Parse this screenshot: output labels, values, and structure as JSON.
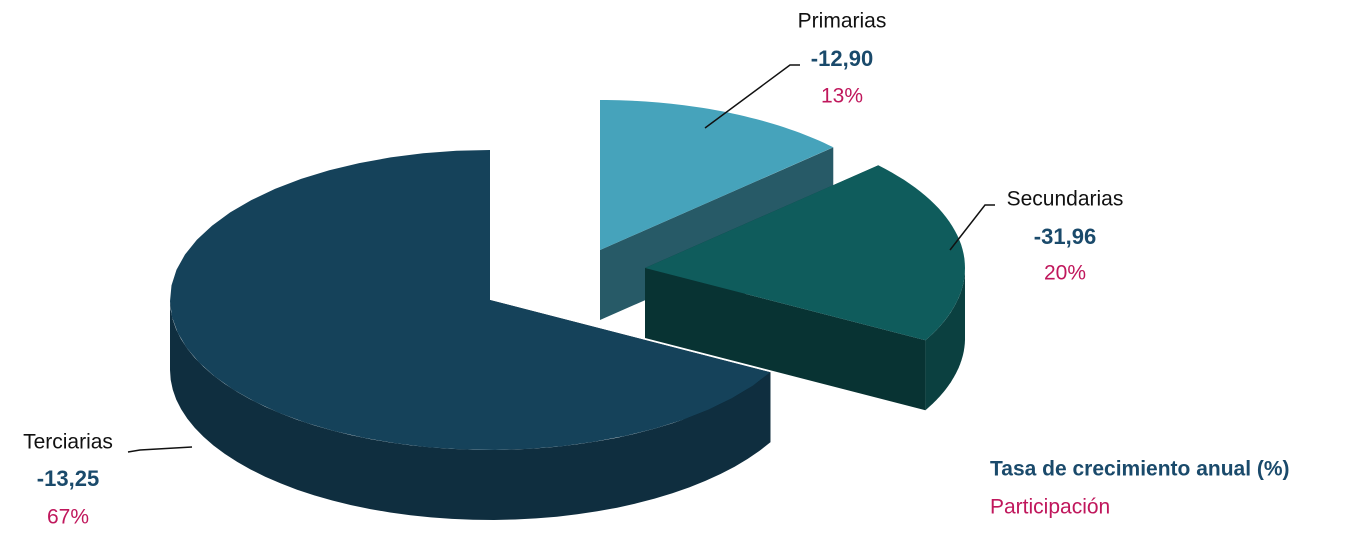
{
  "chart_data": {
    "type": "pie",
    "categories": [
      "Primarias",
      "Secundarias",
      "Terciarias"
    ],
    "colors": [
      "#46a3bb",
      "#0f5c5c",
      "#15425a"
    ],
    "series": [
      {
        "name": "Tasa de crecimiento anual (%)",
        "color": "#1a4a6b",
        "values": [
          -12.9,
          -31.96,
          -13.25
        ],
        "value_labels": [
          "-12,90",
          "-31,96",
          "-13,25"
        ]
      },
      {
        "name": "Participación",
        "color": "#c0175c",
        "values": [
          13,
          20,
          67
        ],
        "value_labels": [
          "13%",
          "20%",
          "67%"
        ]
      }
    ]
  }
}
